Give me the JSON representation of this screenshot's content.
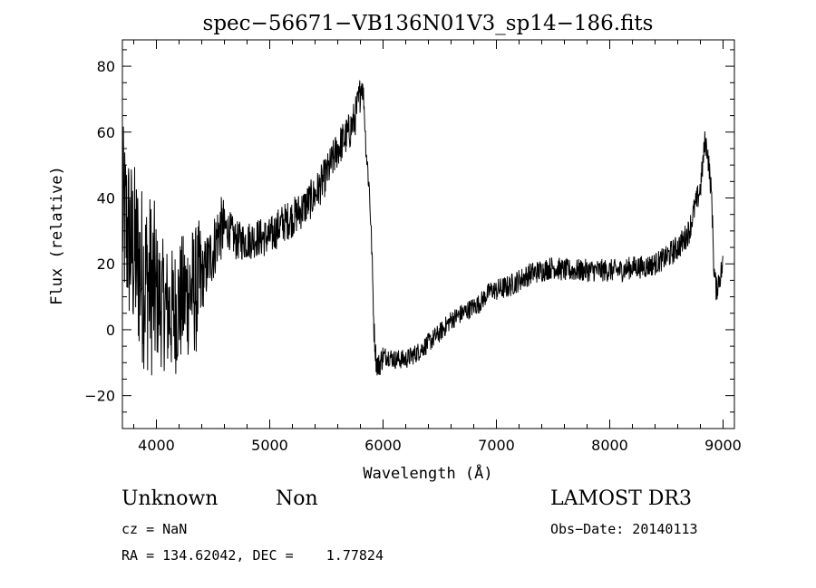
{
  "chart_data": {
    "type": "line",
    "title": "spec−56671−VB136N01V3_sp14−186.fits",
    "xlabel": "Wavelength (Å)",
    "ylabel": "Flux (relative)",
    "xlim": [
      3700,
      9100
    ],
    "ylim": [
      -30,
      88
    ],
    "xticks": [
      4000,
      5000,
      6000,
      7000,
      8000,
      9000
    ],
    "yticks": [
      -20,
      0,
      20,
      40,
      60,
      80
    ],
    "xtick_labels": [
      "4000",
      "5000",
      "6000",
      "7000",
      "8000",
      "9000"
    ],
    "ytick_labels": [
      "−20",
      "0",
      "20",
      "40",
      "60",
      "80"
    ],
    "grid": false,
    "line_color": "#000000",
    "series": [
      {
        "x": [
          3700,
          3740,
          3780,
          3820,
          3860,
          3900,
          3950,
          4000,
          4050,
          4100,
          4150,
          4200,
          4250,
          4300,
          4350,
          4400,
          4450,
          4500,
          4550,
          4600,
          4650,
          4700,
          4800,
          4900,
          5000,
          5100,
          5200,
          5300,
          5400,
          5500,
          5600,
          5700,
          5750,
          5790,
          5810,
          5830,
          5850,
          5880,
          5900,
          5920,
          5940,
          5960,
          6000,
          6050,
          6100,
          6150,
          6200,
          6300,
          6400,
          6500,
          6600,
          6700,
          6800,
          6850,
          6900,
          6950,
          7000,
          7100,
          7200,
          7300,
          7400,
          7500,
          7600,
          7700,
          7800,
          7900,
          8000,
          8100,
          8200,
          8300,
          8400,
          8500,
          8600,
          8650,
          8700,
          8750,
          8800,
          8820,
          8840,
          8860,
          8880,
          8900,
          8920,
          8940,
          8960,
          8980,
          9000
        ],
        "y": [
          35,
          30,
          25,
          22,
          18,
          15,
          14,
          10,
          8,
          6,
          5,
          8,
          10,
          12,
          12,
          15,
          20,
          24,
          30,
          31,
          30,
          27,
          27,
          28,
          28,
          32,
          34,
          37,
          41,
          47,
          55,
          60,
          64,
          70,
          75,
          70,
          55,
          42,
          25,
          0,
          -10,
          -11,
          -8,
          -8,
          -9,
          -9,
          -9,
          -7,
          -4,
          -1,
          3,
          5,
          7,
          8,
          10,
          12,
          12,
          13,
          15,
          17,
          18,
          19,
          18,
          18,
          18,
          18,
          18,
          18,
          19,
          19,
          20,
          22,
          25,
          27,
          30,
          37,
          43,
          50,
          57,
          55,
          48,
          40,
          18,
          12,
          15,
          17,
          20
        ]
      }
    ]
  },
  "annotations": {
    "object_class": "Unknown",
    "object_subclass": "Non",
    "survey": "LAMOST DR3",
    "cz": "cz = NaN",
    "obs_date": "Obs−Date: 20140113",
    "coords": "RA = 134.62042, DEC =    1.77824"
  }
}
